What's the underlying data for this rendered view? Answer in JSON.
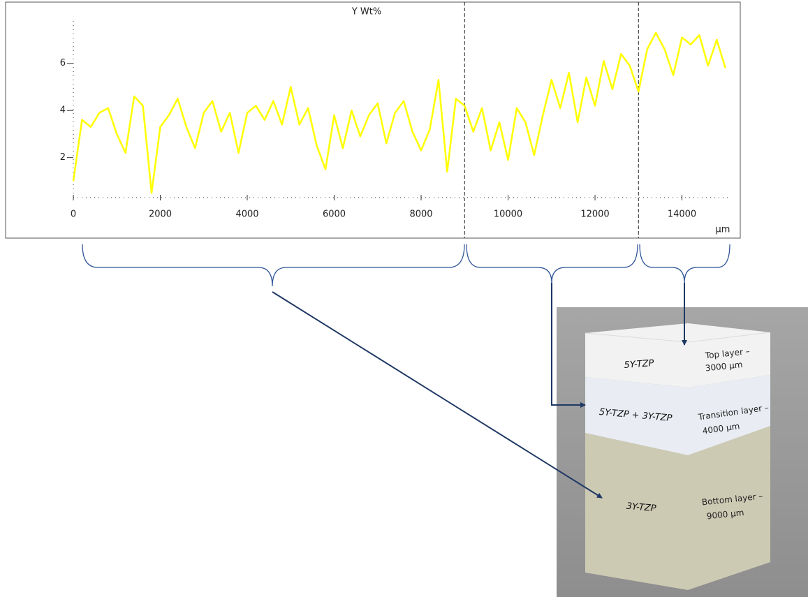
{
  "chart_data": {
    "type": "line",
    "title": "Y Wt%",
    "x_label": "µm",
    "x": [
      0,
      200,
      400,
      600,
      800,
      1000,
      1200,
      1400,
      1600,
      1800,
      2000,
      2200,
      2400,
      2600,
      2800,
      3000,
      3200,
      3400,
      3600,
      3800,
      4000,
      4200,
      4400,
      4600,
      4800,
      5000,
      5200,
      5400,
      5600,
      5800,
      6000,
      6200,
      6400,
      6600,
      6800,
      7000,
      7200,
      7400,
      7600,
      7800,
      8000,
      8200,
      8400,
      8600,
      8800,
      9000,
      9200,
      9400,
      9600,
      9800,
      10000,
      10200,
      10400,
      10600,
      10800,
      11000,
      11200,
      11400,
      11600,
      11800,
      12000,
      12200,
      12400,
      12600,
      12800,
      13000,
      13200,
      13400,
      13600,
      13800,
      14000,
      14200,
      14400,
      14600,
      14800,
      15000
    ],
    "values": [
      1.0,
      3.6,
      3.3,
      3.9,
      4.1,
      3.0,
      2.2,
      4.6,
      4.2,
      0.5,
      3.3,
      3.8,
      4.5,
      3.3,
      2.4,
      3.9,
      4.4,
      3.1,
      3.9,
      2.2,
      3.9,
      4.2,
      3.6,
      4.4,
      3.4,
      5.0,
      3.4,
      4.1,
      2.5,
      1.5,
      3.8,
      2.4,
      4.0,
      2.9,
      3.8,
      4.3,
      2.6,
      3.9,
      4.4,
      3.1,
      2.3,
      3.2,
      5.3,
      1.4,
      4.5,
      4.2,
      3.1,
      4.1,
      2.3,
      3.5,
      1.9,
      4.1,
      3.5,
      2.1,
      3.8,
      5.3,
      4.1,
      5.6,
      3.5,
      5.4,
      4.2,
      6.1,
      4.9,
      6.4,
      5.9,
      4.8,
      6.6,
      7.3,
      6.6,
      5.5,
      7.1,
      6.8,
      7.2,
      5.9,
      7.0,
      5.8
    ],
    "color": "#ffff00",
    "xlim": [
      0,
      15100
    ],
    "xticks": [
      0,
      2000,
      4000,
      6000,
      8000,
      10000,
      12000,
      14000
    ],
    "ylim": [
      0.3,
      7.8
    ],
    "yticks": [
      2,
      4,
      6
    ],
    "vlines": [
      9000,
      13000
    ]
  },
  "diagram": {
    "layers": [
      {
        "name": "5Y-TZP",
        "label": [
          "Top layer –",
          "3000 µm"
        ]
      },
      {
        "name": "5Y-TZP + 3Y-TZP",
        "label": [
          "Transition layer –",
          "4000 µm"
        ]
      },
      {
        "name": "3Y-TZP",
        "label": [
          "Bottom layer –",
          "9000 µm"
        ]
      }
    ]
  }
}
